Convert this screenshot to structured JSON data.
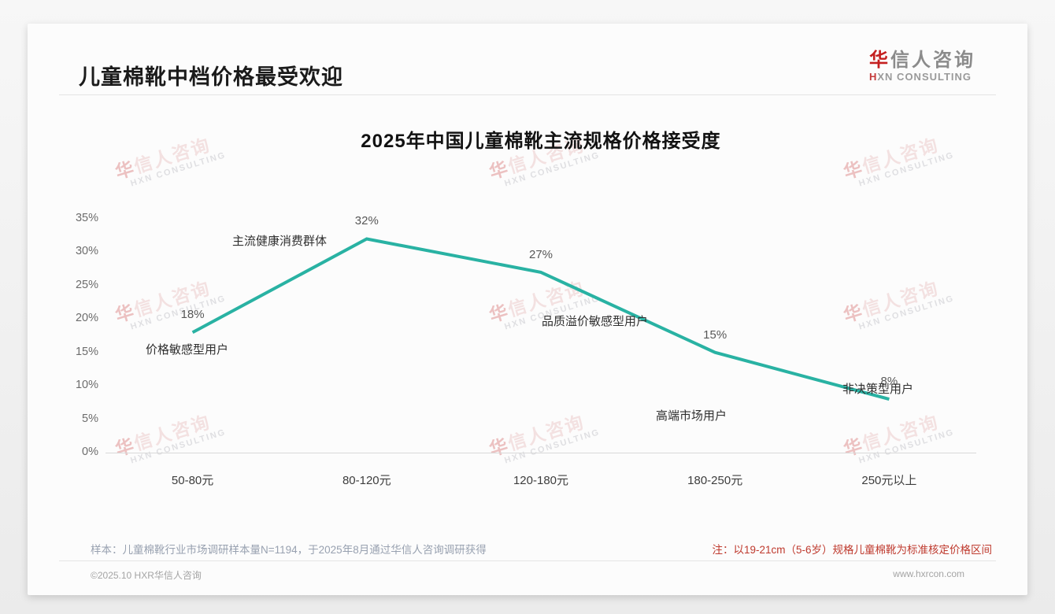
{
  "page": {
    "title": "儿童棉靴中档价格最受欢迎",
    "logo": {
      "cn_first": "华",
      "cn_rest": "信人咨询",
      "en_first": "H",
      "en_rest": "XN CONSULTING"
    },
    "watermark": {
      "line1": "华信人咨询",
      "line2": "HXN CONSULTING"
    },
    "footer": {
      "sample_note": "样本：儿童棉靴行业市场调研样本量N=1194，于2025年8月通过华信人咨询调研获得",
      "price_note": "注：以19-21cm（5-6岁）规格儿童棉靴为标准核定价格区间",
      "copyright": "©2025.10 HXR华信人咨询",
      "website": "www.hxrcon.com"
    }
  },
  "chart_data": {
    "type": "line",
    "title": "2025年中国儿童棉靴主流规格价格接受度",
    "categories": [
      "50-80元",
      "80-120元",
      "120-180元",
      "180-250元",
      "250元以上"
    ],
    "values": [
      18,
      32,
      27,
      15,
      8
    ],
    "value_labels": [
      "18%",
      "32%",
      "27%",
      "15%",
      "8%"
    ],
    "unit": "%",
    "ylim": [
      0,
      35
    ],
    "ytick_step": 5,
    "yticks": [
      "0%",
      "5%",
      "10%",
      "15%",
      "20%",
      "25%",
      "30%",
      "35%"
    ],
    "xlabel": "",
    "ylabel": "",
    "grid": false,
    "legend": "none",
    "line_color": "#29b2a3",
    "annotations": [
      "价格敏感型用户",
      "主流健康消费群体",
      "品质溢价敏感型用户",
      "高端市场用户",
      "非决策型用户"
    ]
  }
}
